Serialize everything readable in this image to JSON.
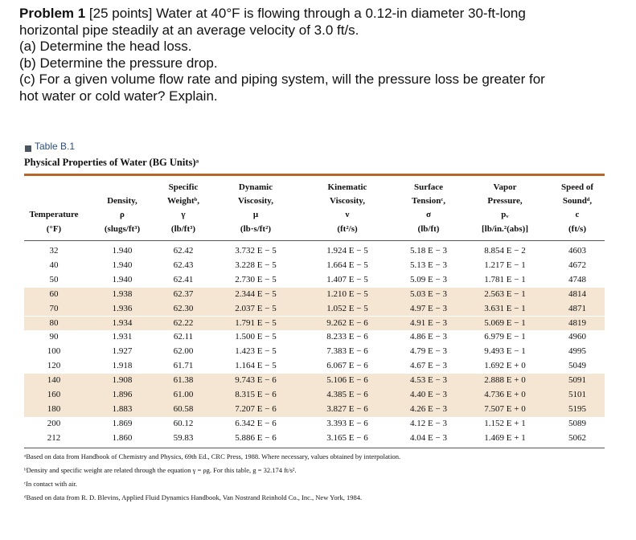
{
  "problem": {
    "label": "Problem 1",
    "lines": [
      " [25 points] Water at 40°F is flowing through a 0.12-in diameter 30-ft-long",
      "horizontal pipe steadily at an average velocity of 3.0 ft/s.",
      " (a) Determine the head loss.",
      " (b) Determine the pressure drop.",
      " (c) For a given volume flow rate and piping system, will the pressure loss be greater for",
      "hot water or cold water? Explain."
    ]
  },
  "table": {
    "label": "Table B.1",
    "title": "Physical Properties of Water (BG Units)ᵃ",
    "headers": [
      [
        "Temperature",
        "(°F)"
      ],
      [
        "Density,",
        "ρ",
        "(slugs/ft³)"
      ],
      [
        "Specific",
        "Weightᵇ,",
        "γ",
        "(lb/ft³)"
      ],
      [
        "Dynamic",
        "Viscosity,",
        "μ",
        "(lb·s/ft²)"
      ],
      [
        "Kinematic",
        "Viscosity,",
        "ν",
        "(ft²/s)"
      ],
      [
        "Surface",
        "Tensionᶜ,",
        "σ",
        "(lb/ft)"
      ],
      [
        "Vapor",
        "Pressure,",
        "pᵥ",
        "[lb/in.²(abs)]"
      ],
      [
        "Speed of",
        "Soundᵈ,",
        "c",
        "(ft/s)"
      ]
    ],
    "rows": [
      [
        "32",
        "1.940",
        "62.42",
        "3.732 E − 5",
        "1.924 E − 5",
        "5.18 E − 3",
        "8.854 E − 2",
        "4603"
      ],
      [
        "40",
        "1.940",
        "62.43",
        "3.228 E − 5",
        "1.664 E − 5",
        "5.13 E − 3",
        "1.217 E − 1",
        "4672"
      ],
      [
        "50",
        "1.940",
        "62.41",
        "2.730 E − 5",
        "1.407 E − 5",
        "5.09 E − 3",
        "1.781 E − 1",
        "4748"
      ],
      [
        "60",
        "1.938",
        "62.37",
        "2.344 E − 5",
        "1.210 E − 5",
        "5.03 E − 3",
        "2.563 E − 1",
        "4814"
      ],
      [
        "70",
        "1.936",
        "62.30",
        "2.037 E − 5",
        "1.052 E − 5",
        "4.97 E − 3",
        "3.631 E − 1",
        "4871"
      ],
      [
        "80",
        "1.934",
        "62.22",
        "1.791 E − 5",
        "9.262 E − 6",
        "4.91 E − 3",
        "5.069 E − 1",
        "4819"
      ],
      [
        "90",
        "1.931",
        "62.11",
        "1.500 E − 5",
        "8.233 E − 6",
        "4.86 E − 3",
        "6.979 E − 1",
        "4960"
      ],
      [
        "100",
        "1.927",
        "62.00",
        "1.423 E − 5",
        "7.383 E − 6",
        "4.79 E − 3",
        "9.493 E − 1",
        "4995"
      ],
      [
        "120",
        "1.918",
        "61.71",
        "1.164 E − 5",
        "6.067 E − 6",
        "4.67 E − 3",
        "1.692 E + 0",
        "5049"
      ],
      [
        "140",
        "1.908",
        "61.38",
        "9.743 E − 6",
        "5.106 E − 6",
        "4.53 E − 3",
        "2.888 E + 0",
        "5091"
      ],
      [
        "160",
        "1.896",
        "61.00",
        "8.315 E − 6",
        "4.385 E − 6",
        "4.40 E − 3",
        "4.736 E + 0",
        "5101"
      ],
      [
        "180",
        "1.883",
        "60.58",
        "7.207 E − 6",
        "3.827 E − 6",
        "4.26 E − 3",
        "7.507 E + 0",
        "5195"
      ],
      [
        "200",
        "1.869",
        "60.12",
        "6.342 E − 6",
        "3.393 E − 6",
        "4.12 E − 3",
        "1.152 E + 1",
        "5089"
      ],
      [
        "212",
        "1.860",
        "59.83",
        "5.886 E − 6",
        "3.165 E − 6",
        "4.04 E − 3",
        "1.469 E + 1",
        "5062"
      ]
    ],
    "footnotes": [
      "ᵃBased on data from Handbook of Chemistry and Physics, 69th Ed., CRC Press, 1988. Where necessary, values obtained by interpolation.",
      "ᵇDensity and specific weight are related through the equation γ = ρg. For this table, g = 32.174 ft/s².",
      "ᶜIn contact with air.",
      "ᵈBased on data from R. D. Blevins, Applied Fluid Dynamics Handbook, Van Nostrand Reinhold Co., Inc., New York, 1984."
    ]
  }
}
